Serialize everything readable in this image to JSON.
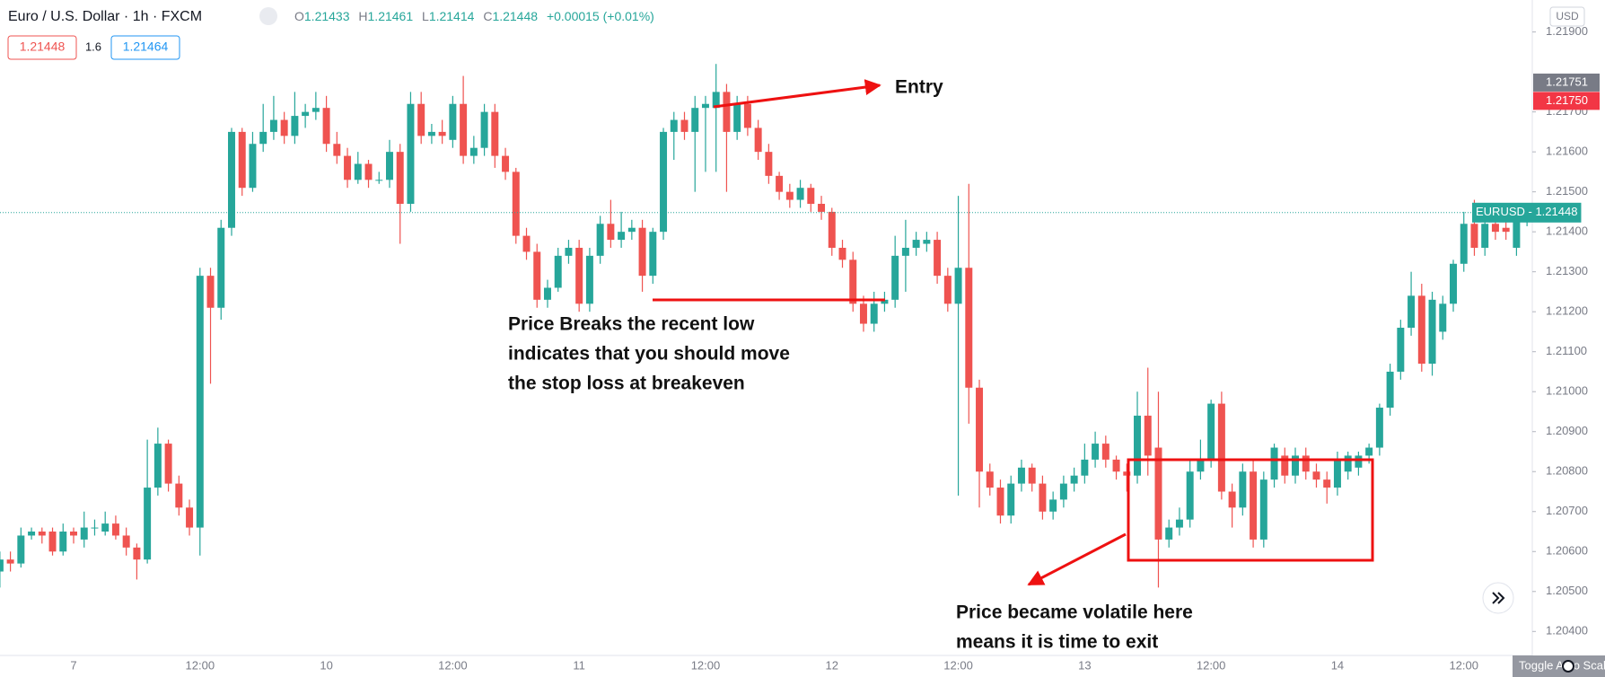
{
  "header": {
    "symbol": "Euro / U.S. Dollar · 1h · FXCM",
    "o": "O",
    "h": "H",
    "l": "L",
    "c": "C",
    "change": "+0.00015 (+0.01%)",
    "bid": "1.21448",
    "spread": "1.6",
    "ask": "1.21464"
  },
  "ui": {
    "currency": "USD",
    "toggle": "Toggle Auto Scale"
  },
  "chart_data": {
    "type": "candlestick",
    "up_color": "#26a69a",
    "down_color": "#ef5350",
    "categories": [
      null,
      null,
      null,
      null,
      null,
      null,
      null,
      "7",
      null,
      null,
      null,
      null,
      null,
      null,
      null,
      null,
      null,
      null,
      null,
      "12:00",
      null,
      null,
      null,
      null,
      null,
      null,
      null,
      null,
      null,
      null,
      null,
      "10",
      null,
      null,
      null,
      null,
      null,
      null,
      null,
      null,
      null,
      null,
      null,
      "12:00",
      null,
      null,
      null,
      null,
      null,
      null,
      null,
      null,
      null,
      null,
      null,
      "11",
      null,
      null,
      null,
      null,
      null,
      null,
      null,
      null,
      null,
      null,
      null,
      "12:00",
      null,
      null,
      null,
      null,
      null,
      null,
      null,
      null,
      null,
      null,
      null,
      "12",
      null,
      null,
      null,
      null,
      null,
      null,
      null,
      null,
      null,
      null,
      null,
      "12:00",
      null,
      null,
      null,
      null,
      null,
      null,
      null,
      null,
      null,
      null,
      null,
      "13",
      null,
      null,
      null,
      null,
      null,
      null,
      null,
      null,
      null,
      null,
      null,
      "12:00",
      null,
      null,
      null,
      null,
      null,
      null,
      null,
      null,
      null,
      null,
      null,
      "14",
      null,
      null,
      null,
      null,
      null,
      null,
      null,
      null,
      null,
      null,
      null,
      "12:00",
      null,
      null,
      null,
      null,
      null,
      null
    ],
    "open": [
      1.2055,
      1.2058,
      1.2057,
      1.2064,
      1.2065,
      1.2065,
      1.206,
      1.2065,
      1.2063,
      1.2066,
      1.2065,
      1.2067,
      1.2064,
      1.2061,
      1.2058,
      1.2076,
      1.2087,
      1.2077,
      1.2071,
      1.2066,
      1.2129,
      1.2121,
      1.2141,
      1.2165,
      1.2151,
      1.2162,
      1.2165,
      1.2168,
      1.2164,
      1.2169,
      1.217,
      1.2171,
      1.2162,
      1.2159,
      1.2153,
      1.2157,
      1.2153,
      1.2153,
      1.216,
      1.2147,
      1.2172,
      1.2164,
      1.2165,
      1.2163,
      1.2172,
      1.2159,
      1.2161,
      1.217,
      1.2159,
      1.2155,
      1.2139,
      1.2135,
      1.2123,
      1.2126,
      1.2134,
      1.2136,
      1.2122,
      1.2134,
      1.2142,
      1.2138,
      1.214,
      1.2141,
      1.2129,
      1.214,
      1.2165,
      1.2168,
      1.2165,
      1.2171,
      1.2171,
      1.2175,
      1.2165,
      1.2172,
      1.2166,
      1.216,
      1.2154,
      1.215,
      1.2148,
      1.2151,
      1.2147,
      1.2145,
      1.2136,
      1.2133,
      1.2122,
      1.2117,
      1.2122,
      1.2123,
      1.2134,
      1.2136,
      1.2137,
      1.2138,
      1.2129,
      1.2122,
      1.2131,
      1.2101,
      1.208,
      1.2076,
      1.2069,
      1.2077,
      1.2081,
      1.2077,
      1.207,
      1.2073,
      1.2077,
      1.2079,
      1.2083,
      1.2087,
      1.2083,
      1.208,
      1.2079,
      1.2094,
      1.2086,
      1.2063,
      1.2066,
      1.2068,
      1.208,
      1.2083,
      1.2097,
      1.2075,
      1.2071,
      1.208,
      1.2063,
      1.2078,
      1.2084,
      1.2079,
      1.2084,
      1.208,
      1.2078,
      1.2076,
      1.208,
      1.2081,
      1.2084,
      1.2086,
      1.2096,
      1.2105,
      1.2116,
      1.2124,
      1.2107,
      1.2115,
      1.2122,
      1.2132,
      1.2142,
      1.2136,
      1.2142,
      1.2141,
      1.2136,
      1.21433
    ],
    "high": [
      1.206,
      1.206,
      1.2066,
      1.2066,
      1.2066,
      1.2066,
      1.2067,
      1.2066,
      1.207,
      1.2068,
      1.207,
      1.2069,
      1.2066,
      1.2062,
      1.2088,
      1.2091,
      1.2088,
      1.2079,
      1.2073,
      1.2131,
      1.2131,
      1.2143,
      1.2166,
      1.2166,
      1.2165,
      1.2172,
      1.2174,
      1.217,
      1.2175,
      1.2172,
      1.2175,
      1.2174,
      1.2165,
      1.2161,
      1.216,
      1.2158,
      1.2155,
      1.2163,
      1.2162,
      1.2175,
      1.2175,
      1.2167,
      1.2168,
      1.2174,
      1.2179,
      1.2164,
      1.2172,
      1.2172,
      1.2161,
      1.2156,
      1.2141,
      1.2137,
      1.2128,
      1.2136,
      1.2138,
      1.2138,
      1.2136,
      1.2144,
      1.2148,
      1.2145,
      1.2143,
      1.2143,
      1.2141,
      1.2166,
      1.217,
      1.217,
      1.2174,
      1.2174,
      1.2182,
      1.2177,
      1.2174,
      1.2174,
      1.2168,
      1.2162,
      1.2155,
      1.2152,
      1.2153,
      1.2152,
      1.2149,
      1.2146,
      1.2138,
      1.2135,
      1.2124,
      1.2125,
      1.2125,
      1.2139,
      1.2143,
      1.214,
      1.214,
      1.214,
      1.2131,
      1.2149,
      1.2152,
      1.2103,
      1.2082,
      1.2078,
      1.2079,
      1.2083,
      1.2082,
      1.2079,
      1.2075,
      1.2079,
      1.2081,
      1.2087,
      1.209,
      1.2089,
      1.2084,
      1.2082,
      1.21,
      1.2106,
      1.21,
      1.2068,
      1.2071,
      1.2083,
      1.2088,
      1.2098,
      1.21,
      1.2077,
      1.2082,
      1.2083,
      1.208,
      1.2087,
      1.2086,
      1.2086,
      1.2086,
      1.2082,
      1.208,
      1.2085,
      1.2085,
      1.2085,
      1.2087,
      1.2097,
      1.2107,
      1.2118,
      1.213,
      1.2127,
      1.2125,
      1.2124,
      1.2133,
      1.2145,
      1.2148,
      1.2143,
      1.2144,
      1.2143,
      1.2146,
      1.21461
    ],
    "low": [
      1.2051,
      1.2055,
      1.2056,
      1.2063,
      1.2062,
      1.2059,
      1.2059,
      1.2062,
      1.2061,
      1.2064,
      1.2064,
      1.2063,
      1.2059,
      1.2053,
      1.2057,
      1.2074,
      1.2075,
      1.2069,
      1.2064,
      1.2059,
      1.2102,
      1.2118,
      1.2139,
      1.2149,
      1.215,
      1.216,
      1.2163,
      1.2162,
      1.2162,
      1.2166,
      1.2168,
      1.216,
      1.2157,
      1.2151,
      1.2152,
      1.2151,
      1.2152,
      1.2151,
      1.2137,
      1.2145,
      1.2162,
      1.2162,
      1.2162,
      1.2161,
      1.2157,
      1.2157,
      1.2159,
      1.2156,
      1.2153,
      1.2137,
      1.2133,
      1.2121,
      1.2121,
      1.2125,
      1.2132,
      1.212,
      1.212,
      1.2132,
      1.2136,
      1.2136,
      1.2138,
      1.2125,
      1.2127,
      1.2138,
      1.2158,
      1.2163,
      1.215,
      1.2155,
      1.2155,
      1.215,
      1.2163,
      1.2164,
      1.2158,
      1.2152,
      1.2148,
      1.2146,
      1.2146,
      1.2145,
      1.2143,
      1.2134,
      1.2131,
      1.212,
      1.2115,
      1.2115,
      1.212,
      1.2121,
      1.2125,
      1.2134,
      1.2135,
      1.2127,
      1.212,
      1.2074,
      1.2092,
      1.2071,
      1.2074,
      1.2067,
      1.2067,
      1.2075,
      1.2075,
      1.2068,
      1.2068,
      1.2071,
      1.2075,
      1.2077,
      1.2081,
      1.2081,
      1.2078,
      1.2075,
      1.2077,
      1.2079,
      1.2051,
      1.2061,
      1.2064,
      1.2066,
      1.2078,
      1.2081,
      1.2073,
      1.2066,
      1.2069,
      1.2061,
      1.2061,
      1.2076,
      1.2077,
      1.2077,
      1.2078,
      1.2076,
      1.2072,
      1.2074,
      1.2078,
      1.2079,
      1.2082,
      1.2084,
      1.2094,
      1.2103,
      1.2114,
      1.2105,
      1.2104,
      1.2113,
      1.212,
      1.213,
      1.2134,
      1.2134,
      1.2138,
      1.2138,
      1.2134,
      1.21414
    ],
    "close": [
      1.2058,
      1.2057,
      1.2064,
      1.2065,
      1.2064,
      1.206,
      1.2065,
      1.2064,
      1.2066,
      1.2066,
      1.2067,
      1.2064,
      1.2061,
      1.2058,
      1.2076,
      1.2087,
      1.2077,
      1.2071,
      1.2066,
      1.2129,
      1.2121,
      1.2141,
      1.2165,
      1.2151,
      1.2162,
      1.2165,
      1.2168,
      1.2164,
      1.2169,
      1.217,
      1.2171,
      1.2162,
      1.2159,
      1.2153,
      1.2157,
      1.2153,
      1.2153,
      1.216,
      1.2147,
      1.2172,
      1.2164,
      1.2165,
      1.2164,
      1.2172,
      1.2159,
      1.2161,
      1.217,
      1.2159,
      1.2155,
      1.2139,
      1.2135,
      1.2123,
      1.2126,
      1.2134,
      1.2136,
      1.2122,
      1.2134,
      1.2142,
      1.2138,
      1.214,
      1.2141,
      1.2129,
      1.214,
      1.2165,
      1.2168,
      1.2165,
      1.2171,
      1.2172,
      1.2175,
      1.2165,
      1.2172,
      1.2166,
      1.216,
      1.2154,
      1.215,
      1.2148,
      1.2151,
      1.2147,
      1.2145,
      1.2136,
      1.2133,
      1.2122,
      1.2117,
      1.2122,
      1.2123,
      1.2134,
      1.2136,
      1.2138,
      1.2138,
      1.2129,
      1.2122,
      1.2131,
      1.2101,
      1.208,
      1.2076,
      1.2069,
      1.2077,
      1.2081,
      1.2077,
      1.207,
      1.2073,
      1.2077,
      1.2079,
      1.2083,
      1.2087,
      1.2083,
      1.208,
      1.2079,
      1.2094,
      1.2084,
      1.2063,
      1.2066,
      1.2068,
      1.208,
      1.2083,
      1.2097,
      1.2075,
      1.2071,
      1.208,
      1.2063,
      1.2078,
      1.2086,
      1.2079,
      1.2084,
      1.208,
      1.2078,
      1.2076,
      1.2083,
      1.2084,
      1.2084,
      1.2086,
      1.2096,
      1.2105,
      1.2116,
      1.2124,
      1.2107,
      1.2123,
      1.2122,
      1.2132,
      1.2142,
      1.2136,
      1.2142,
      1.214,
      1.214,
      1.2145,
      1.21448
    ],
    "ylim": [
      1.2034,
      1.2198
    ],
    "yticks": [
      {
        "value": 1.204,
        "label": "1.20400"
      },
      {
        "value": 1.205,
        "label": "1.20500"
      },
      {
        "value": 1.206,
        "label": "1.20600"
      },
      {
        "value": 1.207,
        "label": "1.20700"
      },
      {
        "value": 1.208,
        "label": "1.20800"
      },
      {
        "value": 1.209,
        "label": "1.20900"
      },
      {
        "value": 1.21,
        "label": "1.21000"
      },
      {
        "value": 1.211,
        "label": "1.21100"
      },
      {
        "value": 1.212,
        "label": "1.21200"
      },
      {
        "value": 1.213,
        "label": "1.21300"
      },
      {
        "value": 1.214,
        "label": "1.21400"
      },
      {
        "value": 1.215,
        "label": "1.21500"
      },
      {
        "value": 1.216,
        "label": "1.21600"
      },
      {
        "value": 1.217,
        "label": "1.21700"
      },
      {
        "value": 1.219,
        "label": "1.21900"
      }
    ],
    "price_line_label": "EURUSD - 1.21448",
    "axis_markers": [
      {
        "value": 1.21751,
        "label": "1.21751",
        "color": "#787b86"
      },
      {
        "value": 1.2175,
        "label": "1.21750",
        "color": "#f23645"
      }
    ],
    "annotations": {
      "entry": "Entry",
      "break": [
        "Price Breaks the recent low",
        "indicates that you should move",
        "the stop loss at breakeven"
      ],
      "exit": [
        "Price became volatile here",
        "means it is time to exit"
      ]
    }
  }
}
